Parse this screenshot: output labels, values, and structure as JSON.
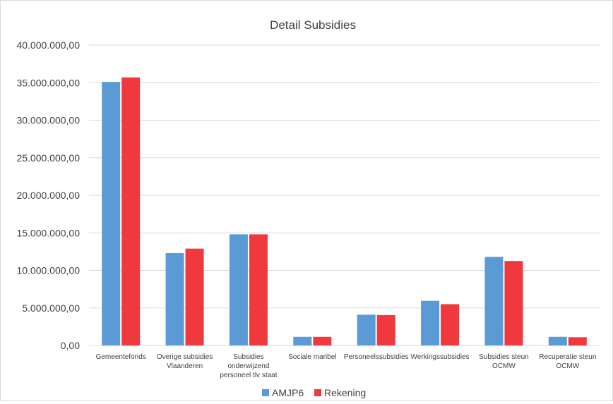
{
  "chart_data": {
    "type": "bar",
    "title": "Detail Subsidies",
    "xlabel": "",
    "ylabel": "",
    "categories": [
      "Gemeentefonds",
      "Overige subsidies Vlaanderen",
      "Subsidies onderwijzend personeel tlv staat",
      "Sociale maribel",
      "Personeelssubsidies",
      "Werkingssubsidies",
      "Subsidies steun OCMW",
      "Recuperatie steun OCMW"
    ],
    "category_lines": [
      [
        "Gemeentefonds"
      ],
      [
        "Overige subsidies",
        "Vlaanderen"
      ],
      [
        "Subsidies",
        "onderwijzend",
        "personeel tlv staat"
      ],
      [
        "Sociale maribel"
      ],
      [
        "Personeelssubsidies"
      ],
      [
        "Werkingssubsidies"
      ],
      [
        "Subsidies steun",
        "OCMW"
      ],
      [
        "Recuperatie steun",
        "OCMW"
      ]
    ],
    "series": [
      {
        "name": "AMJP6",
        "color": "#5b9bd5",
        "values": [
          35100000,
          12300000,
          14800000,
          1150000,
          4100000,
          5950000,
          11800000,
          1150000
        ]
      },
      {
        "name": "Rekening",
        "color": "#f0393f",
        "values": [
          35700000,
          12900000,
          14800000,
          1150000,
          4050000,
          5500000,
          11250000,
          1100000
        ]
      }
    ],
    "ylim": [
      0,
      40000000
    ],
    "yticks": [
      0,
      5000000,
      10000000,
      15000000,
      20000000,
      25000000,
      30000000,
      35000000,
      40000000
    ],
    "ytick_labels": [
      "0,00",
      "5.000.000,00",
      "10.000.000,00",
      "15.000.000,00",
      "20.000.000,00",
      "25.000.000,00",
      "30.000.000,00",
      "35.000.000,00",
      "40.000.000,00"
    ],
    "grid": true,
    "legend_position": "bottom"
  }
}
